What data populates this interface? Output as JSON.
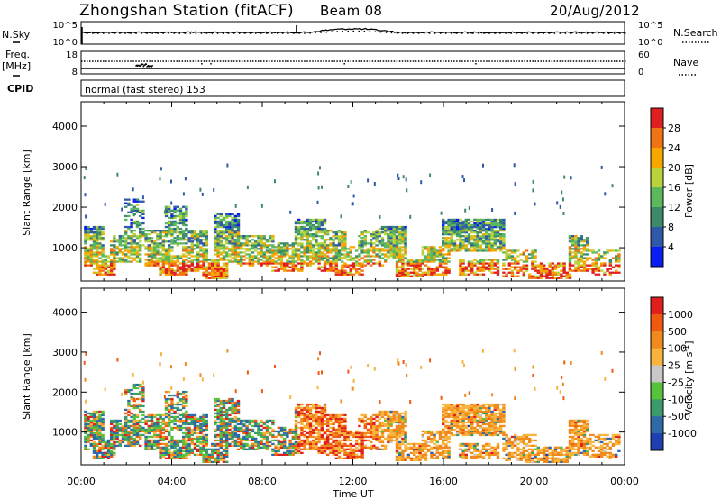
{
  "header": {
    "station": "Zhongshan Station (fitACF)",
    "beam": "Beam 08",
    "date": "20/Aug/2012"
  },
  "top_panel": {
    "left_label": "N.Sky",
    "right_label": "N.Search",
    "left_ticks": [
      "10^5",
      "10^0"
    ],
    "right_ticks": [
      "10^5",
      "10^0"
    ]
  },
  "freq_panel": {
    "left_label_1": "Freq.",
    "left_label_2": "[MHz]",
    "right_label": "Nave",
    "left_ticks": [
      "18",
      "8"
    ],
    "right_ticks": [
      "60",
      "0"
    ]
  },
  "cpid": {
    "label": "CPID",
    "text": "normal (fast stereo) 153"
  },
  "chart_data": [
    {
      "type": "heatmap",
      "name": "power",
      "ylabel": "Slant Range [km]",
      "yticks": [
        1000,
        2000,
        3000,
        4000
      ],
      "ylim": [
        180,
        4600
      ],
      "xlim": [
        0,
        24
      ],
      "colorbar_label": "Power [dB]",
      "colorbar_ticks": [
        "28",
        "24",
        "20",
        "16",
        "12",
        "8",
        "4"
      ],
      "colors": [
        "#0a1ef0",
        "#2f58a8",
        "#3d8a6a",
        "#5cb85c",
        "#bcd23a",
        "#f6a800",
        "#f07414",
        "#e02020"
      ]
    },
    {
      "type": "heatmap",
      "name": "velocity",
      "ylabel": "Slant Range [km]",
      "yticks": [
        1000,
        2000,
        3000,
        4000
      ],
      "ylim": [
        180,
        4600
      ],
      "xlim": [
        0,
        24
      ],
      "colorbar_label": "Velocity [m s",
      "colorbar_sup": "-1",
      "colorbar_unit_close": "]",
      "colorbar_ticks": [
        "1000",
        "500",
        "100",
        "25",
        "-25",
        "-100",
        "-500",
        "-1000"
      ],
      "colors": [
        "#1f3fb0",
        "#2f6aa8",
        "#3d9a6a",
        "#58c23a",
        "#c8c8c8",
        "#f8b43c",
        "#f08a1c",
        "#f05a10",
        "#e01e1e"
      ]
    }
  ],
  "xaxis": {
    "ticks": [
      "00:00",
      "04:00",
      "08:00",
      "12:00",
      "16:00",
      "20:00",
      "00:00"
    ],
    "label": "Time UT"
  }
}
